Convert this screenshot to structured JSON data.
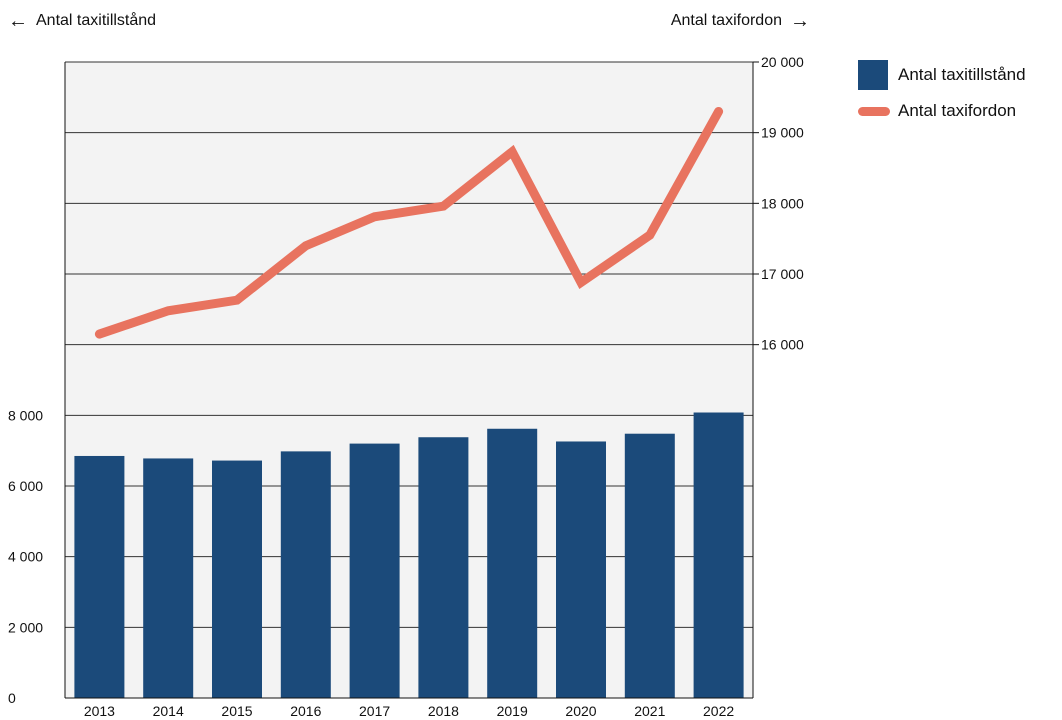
{
  "colors": {
    "bar": "#1b4a7a",
    "line": "#e8735f",
    "plot_background": "#f3f3f3",
    "grid": "#333333"
  },
  "left_caption": "Antal taxitillstånd",
  "right_caption": "Antal taxifordon",
  "left_arrow_icon": "arrow-left-icon",
  "right_arrow_icon": "arrow-right-icon",
  "legend": [
    {
      "label": "Antal taxitillstånd",
      "kind": "bar"
    },
    {
      "label": "Antal taxifordon",
      "kind": "line"
    }
  ],
  "chart_data": {
    "type": "bar+line",
    "categories": [
      "2013",
      "2014",
      "2015",
      "2016",
      "2017",
      "2018",
      "2019",
      "2020",
      "2021",
      "2022"
    ],
    "series": [
      {
        "name": "Antal taxitillstånd",
        "type": "bar",
        "axis": "left",
        "values": [
          6850,
          6780,
          6720,
          6980,
          7200,
          7380,
          7620,
          7260,
          7480,
          8080
        ]
      },
      {
        "name": "Antal taxifordon",
        "type": "line",
        "axis": "right",
        "values": [
          16150,
          16480,
          16630,
          17400,
          17810,
          17960,
          18730,
          16880,
          17550,
          19300
        ]
      }
    ],
    "left_axis": {
      "label": "Antal taxitillstånd",
      "ylim": [
        0,
        8000
      ],
      "ticks": [
        0,
        2000,
        4000,
        6000,
        8000
      ],
      "tick_labels": [
        "0",
        "2 000",
        "4 000",
        "6 000",
        "8 000"
      ]
    },
    "right_axis": {
      "label": "Antal taxifordon",
      "ylim": [
        16000,
        20000
      ],
      "ticks": [
        16000,
        17000,
        18000,
        19000,
        20000
      ],
      "tick_labels": [
        "16 000",
        "17 000",
        "18 000",
        "19 000",
        "20 000"
      ]
    },
    "grid": true,
    "legend_position": "right"
  }
}
